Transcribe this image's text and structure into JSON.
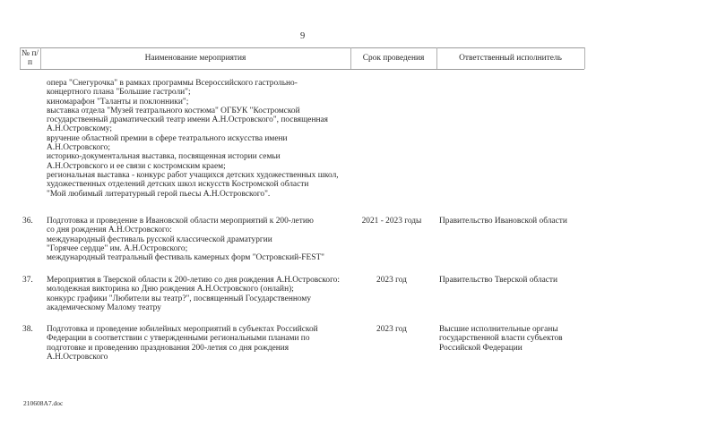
{
  "page_number": "9",
  "table": {
    "headers": [
      "№ п/п",
      "Наименование мероприятия",
      "Срок проведения",
      "Ответственный исполнитель"
    ],
    "continuation": {
      "lines": [
        "опера \"Снегурочка\" в рамках программы Всероссийского гастрольно-",
        "концертного плана \"Большие гастроли\";",
        "киномарафон \"Таланты и поклонники\";",
        "выставка отдела \"Музей театрального костюма\" ОГБУК \"Костромской",
        "государственный драматический театр имени А.Н.Островского\", посвященная",
        "А.Н.Островскому;",
        "вручение областной премии в сфере театрального искусства имени",
        "А.Н.Островского;",
        "историко-документальная выставка, посвященная истории семьи",
        "А.Н.Островского и ее связи с костромским краем;",
        "региональная выставка - конкурс работ учащихся детских художественных школ,",
        "художественных отделений детских школ искусств Костромской области",
        "\"Мой любимый литературный герой пьесы А.Н.Островского\"."
      ]
    },
    "rows": [
      {
        "number": "36.",
        "lines": [
          "Подготовка и проведение в Ивановской области мероприятий к 200-летию",
          "со дня рождения А.Н.Островского:",
          "международный фестиваль русской классической драматургии",
          "\"Горячее сердце\" им. А.Н.Островского;",
          "международный театральный фестиваль камерных форм \"Островский-FEST\""
        ],
        "date": "2021 - 2023 годы",
        "responsible": [
          "Правительство Ивановской области"
        ]
      },
      {
        "number": "37.",
        "lines": [
          "Мероприятия в Тверской области к 200-летию со дня рождения А.Н.Островского:",
          "молодежная викторина ко Дню рождения А.Н.Островского (онлайн);",
          "конкурс графики \"Любители вы театр?\", посвященный Государственному",
          "академическому Малому театру"
        ],
        "date": "2023 год",
        "responsible": [
          "Правительство Тверской области"
        ]
      },
      {
        "number": "38.",
        "lines": [
          "Подготовка и проведение юбилейных мероприятий в субъектах Российской",
          "Федерации в соответствии с утвержденными региональными планами по",
          "подготовке и проведению празднования 200-летия со дня рождения",
          "А.Н.Островского"
        ],
        "date": "2023 год",
        "responsible": [
          "Высшие исполнительные органы",
          "государственной власти субъектов",
          "Российской Федерации"
        ]
      }
    ]
  },
  "footer": {
    "filename": "210608А7.doc"
  }
}
